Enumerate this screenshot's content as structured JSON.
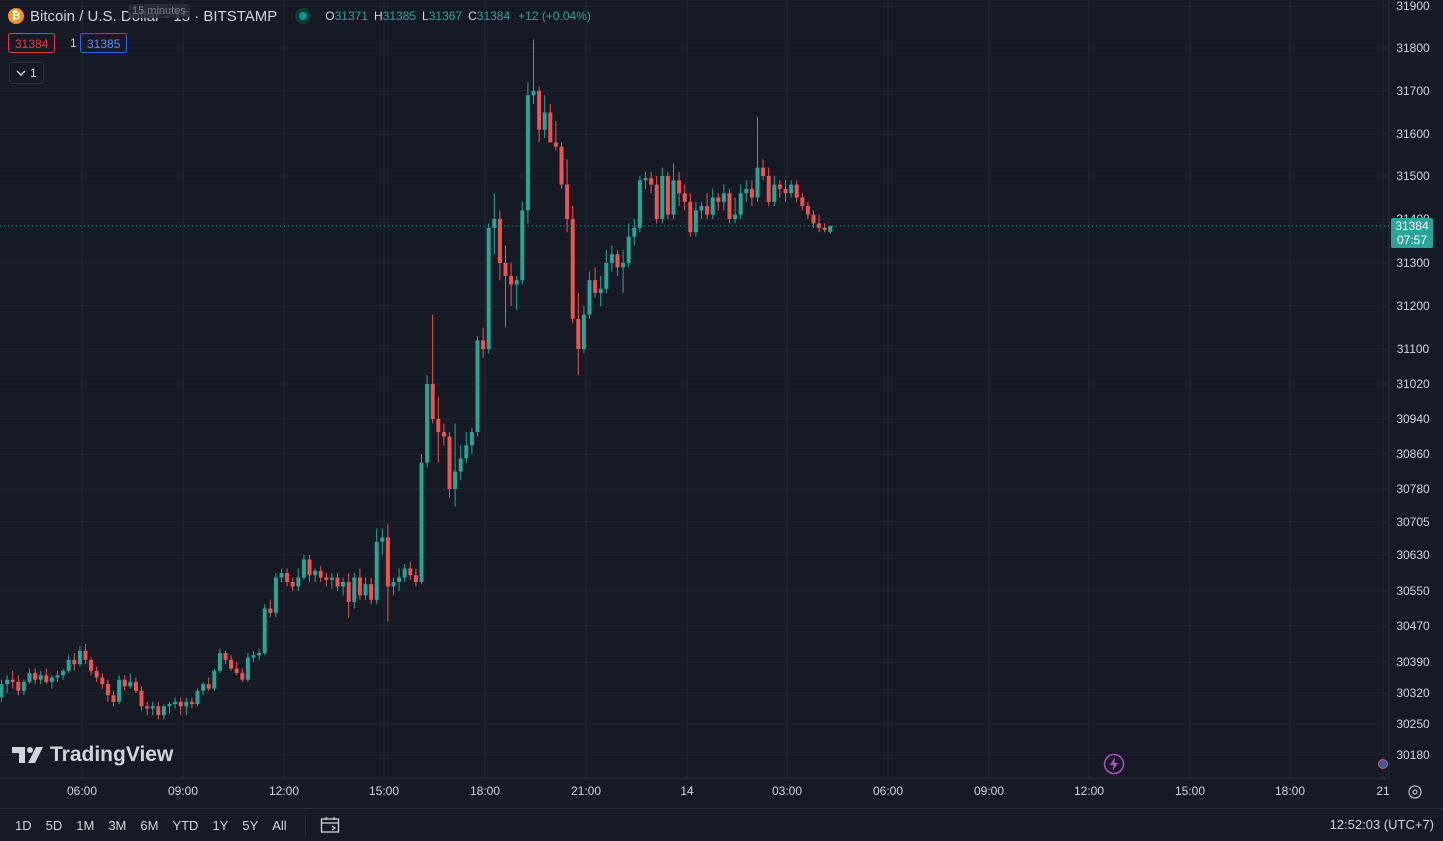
{
  "header": {
    "symbol_title": "Bitcoin / U.S. Dollar · 15 · BITSTAMP",
    "tooltip": "15 minutes",
    "ohlc": {
      "o_label": "O",
      "o_value": "31371",
      "h_label": "H",
      "h_value": "31385",
      "l_label": "L",
      "l_value": "31367",
      "c_label": "C",
      "c_value": "31384",
      "change": "+12 (+0.04%)"
    },
    "sell_price": "31384",
    "quantity": "1",
    "buy_price": "31385",
    "indicator_count": "1"
  },
  "price_label": {
    "price": "31384",
    "countdown": "07:57"
  },
  "logo_text": "TradingView",
  "bottom_bar": {
    "ranges": [
      "1D",
      "5D",
      "1M",
      "3M",
      "6M",
      "YTD",
      "1Y",
      "5Y",
      "All"
    ],
    "clock": "12:52:03 (UTC+7)"
  },
  "colors": {
    "up": "#26a69a",
    "down": "#ef5350",
    "bg": "#161a25",
    "grid": "#232733"
  },
  "icons": [
    "bitcoin-icon",
    "calendar-range-icon",
    "flash-icon",
    "settings-icon",
    "chevron-down-icon",
    "tradingview-logo-icon",
    "flag-icon"
  ],
  "chart_data": {
    "type": "candlestick",
    "interval": "15",
    "y_ticks": [
      31900,
      31800,
      31700,
      31600,
      31500,
      31400,
      31300,
      31200,
      31100,
      31020,
      30940,
      30860,
      30780,
      30705,
      30630,
      30550,
      30470,
      30390,
      30320,
      30250,
      30180
    ],
    "x_ticks": [
      "06:00",
      "09:00",
      "12:00",
      "15:00",
      "18:00",
      "21:00",
      "14",
      "03:00",
      "06:00",
      "09:00",
      "12:00",
      "15:00",
      "18:00",
      "21"
    ],
    "last_price": 31384,
    "candles": [
      [
        30310,
        30350,
        30300,
        30340
      ],
      [
        30340,
        30360,
        30320,
        30350
      ],
      [
        30350,
        30370,
        30330,
        30345
      ],
      [
        30345,
        30360,
        30315,
        30325
      ],
      [
        30325,
        30350,
        30315,
        30345
      ],
      [
        30345,
        30375,
        30340,
        30365
      ],
      [
        30365,
        30375,
        30340,
        30350
      ],
      [
        30350,
        30370,
        30340,
        30360
      ],
      [
        30360,
        30375,
        30340,
        30345
      ],
      [
        30345,
        30360,
        30330,
        30355
      ],
      [
        30355,
        30370,
        30345,
        30360
      ],
      [
        30360,
        30375,
        30350,
        30370
      ],
      [
        30370,
        30405,
        30365,
        30395
      ],
      [
        30395,
        30410,
        30370,
        30385
      ],
      [
        30385,
        30425,
        30380,
        30415
      ],
      [
        30415,
        30430,
        30385,
        30395
      ],
      [
        30395,
        30400,
        30360,
        30370
      ],
      [
        30370,
        30380,
        30345,
        30355
      ],
      [
        30355,
        30365,
        30330,
        30340
      ],
      [
        30340,
        30350,
        30300,
        30315
      ],
      [
        30315,
        30325,
        30290,
        30300
      ],
      [
        30300,
        30360,
        30295,
        30350
      ],
      [
        30350,
        30360,
        30325,
        30335
      ],
      [
        30335,
        30365,
        30330,
        30345
      ],
      [
        30345,
        30355,
        30320,
        30325
      ],
      [
        30325,
        30335,
        30280,
        30290
      ],
      [
        30290,
        30300,
        30270,
        30285
      ],
      [
        30285,
        30300,
        30270,
        30290
      ],
      [
        30290,
        30300,
        30260,
        30270
      ],
      [
        30270,
        30295,
        30260,
        30290
      ],
      [
        30290,
        30300,
        30275,
        30295
      ],
      [
        30295,
        30310,
        30285,
        30300
      ],
      [
        30300,
        30310,
        30270,
        30290
      ],
      [
        30290,
        30310,
        30270,
        30300
      ],
      [
        30300,
        30310,
        30285,
        30295
      ],
      [
        30295,
        30330,
        30290,
        30325
      ],
      [
        30325,
        30345,
        30315,
        30340
      ],
      [
        30340,
        30355,
        30325,
        30330
      ],
      [
        30330,
        30375,
        30325,
        30370
      ],
      [
        30370,
        30420,
        30365,
        30410
      ],
      [
        30410,
        30415,
        30385,
        30395
      ],
      [
        30395,
        30405,
        30370,
        30375
      ],
      [
        30375,
        30390,
        30360,
        30365
      ],
      [
        30365,
        30375,
        30345,
        30350
      ],
      [
        30350,
        30410,
        30345,
        30400
      ],
      [
        30400,
        30415,
        30390,
        30405
      ],
      [
        30405,
        30420,
        30395,
        30410
      ],
      [
        30410,
        30520,
        30405,
        30510
      ],
      [
        30510,
        30530,
        30490,
        30500
      ],
      [
        30500,
        30590,
        30490,
        30580
      ],
      [
        30580,
        30600,
        30570,
        30590
      ],
      [
        30590,
        30600,
        30560,
        30570
      ],
      [
        30570,
        30580,
        30550,
        30560
      ],
      [
        30560,
        30600,
        30550,
        30580
      ],
      [
        30580,
        30630,
        30575,
        30620
      ],
      [
        30620,
        30630,
        30570,
        30585
      ],
      [
        30585,
        30600,
        30570,
        30595
      ],
      [
        30595,
        30605,
        30570,
        30580
      ],
      [
        30580,
        30590,
        30560,
        30575
      ],
      [
        30575,
        30590,
        30555,
        30580
      ],
      [
        30580,
        30590,
        30550,
        30560
      ],
      [
        30560,
        30580,
        30540,
        30570
      ],
      [
        30570,
        30590,
        30490,
        30525
      ],
      [
        30525,
        30590,
        30510,
        30580
      ],
      [
        30580,
        30600,
        30530,
        30540
      ],
      [
        30540,
        30580,
        30530,
        30565
      ],
      [
        30565,
        30580,
        30520,
        30530
      ],
      [
        30530,
        30690,
        30520,
        30660
      ],
      [
        30660,
        30690,
        30630,
        30670
      ],
      [
        30670,
        30700,
        30480,
        30560
      ],
      [
        30560,
        30580,
        30540,
        30570
      ],
      [
        30570,
        30600,
        30550,
        30580
      ],
      [
        30580,
        30610,
        30570,
        30600
      ],
      [
        30600,
        30615,
        30575,
        30585
      ],
      [
        30585,
        30600,
        30560,
        30570
      ],
      [
        30570,
        30860,
        30565,
        30840
      ],
      [
        30840,
        31040,
        30830,
        31020
      ],
      [
        31020,
        31180,
        30930,
        30940
      ],
      [
        30940,
        30990,
        30840,
        30910
      ],
      [
        30910,
        30930,
        30880,
        30900
      ],
      [
        30900,
        30910,
        30760,
        30780
      ],
      [
        30780,
        30930,
        30740,
        30820
      ],
      [
        30820,
        30880,
        30800,
        30850
      ],
      [
        30850,
        30910,
        30840,
        30880
      ],
      [
        30880,
        30920,
        30860,
        30910
      ],
      [
        30910,
        31130,
        30900,
        31120
      ],
      [
        31120,
        31150,
        31080,
        31100
      ],
      [
        31100,
        31390,
        31090,
        31380
      ],
      [
        31380,
        31460,
        31320,
        31400
      ],
      [
        31400,
        31420,
        31260,
        31300
      ],
      [
        31300,
        31340,
        31150,
        31270
      ],
      [
        31270,
        31300,
        31200,
        31250
      ],
      [
        31250,
        31270,
        31190,
        31260
      ],
      [
        31260,
        31440,
        31250,
        31420
      ],
      [
        31420,
        31720,
        31390,
        31690
      ],
      [
        31690,
        31820,
        31670,
        31700
      ],
      [
        31700,
        31710,
        31580,
        31610
      ],
      [
        31610,
        31690,
        31590,
        31650
      ],
      [
        31650,
        31670,
        31580,
        31580
      ],
      [
        31580,
        31630,
        31560,
        31570
      ],
      [
        31570,
        31580,
        31470,
        31480
      ],
      [
        31480,
        31540,
        31370,
        31400
      ],
      [
        31400,
        31430,
        31160,
        31170
      ],
      [
        31170,
        31230,
        31040,
        31100
      ],
      [
        31100,
        31200,
        31090,
        31180
      ],
      [
        31180,
        31280,
        31170,
        31260
      ],
      [
        31260,
        31290,
        31220,
        31230
      ],
      [
        31230,
        31270,
        31200,
        31240
      ],
      [
        31240,
        31330,
        31230,
        31300
      ],
      [
        31300,
        31340,
        31280,
        31320
      ],
      [
        31320,
        31330,
        31270,
        31290
      ],
      [
        31290,
        31330,
        31230,
        31300
      ],
      [
        31300,
        31390,
        31290,
        31360
      ],
      [
        31360,
        31400,
        31340,
        31380
      ],
      [
        31380,
        31500,
        31370,
        31490
      ],
      [
        31490,
        31510,
        31470,
        31495
      ],
      [
        31495,
        31510,
        31460,
        31480
      ],
      [
        31480,
        31500,
        31390,
        31400
      ],
      [
        31400,
        31520,
        31390,
        31500
      ],
      [
        31500,
        31510,
        31400,
        31410
      ],
      [
        31410,
        31530,
        31400,
        31490
      ],
      [
        31490,
        31510,
        31430,
        31460
      ],
      [
        31460,
        31480,
        31420,
        31440
      ],
      [
        31440,
        31460,
        31360,
        31370
      ],
      [
        31370,
        31440,
        31360,
        31420
      ],
      [
        31420,
        31440,
        31400,
        31430
      ],
      [
        31430,
        31460,
        31400,
        31410
      ],
      [
        31410,
        31470,
        31400,
        31450
      ],
      [
        31450,
        31460,
        31420,
        31440
      ],
      [
        31440,
        31480,
        31420,
        31460
      ],
      [
        31460,
        31470,
        31390,
        31400
      ],
      [
        31400,
        31450,
        31390,
        31410
      ],
      [
        31410,
        31480,
        31400,
        31460
      ],
      [
        31460,
        31490,
        31440,
        31470
      ],
      [
        31470,
        31490,
        31430,
        31450
      ],
      [
        31450,
        31640,
        31440,
        31520
      ],
      [
        31520,
        31540,
        31490,
        31500
      ],
      [
        31500,
        31520,
        31430,
        31440
      ],
      [
        31440,
        31500,
        31430,
        31480
      ],
      [
        31480,
        31490,
        31450,
        31470
      ],
      [
        31470,
        31490,
        31440,
        31460
      ],
      [
        31460,
        31490,
        31450,
        31480
      ],
      [
        31480,
        31490,
        31440,
        31450
      ],
      [
        31450,
        31460,
        31420,
        31430
      ],
      [
        31430,
        31440,
        31400,
        31410
      ],
      [
        31410,
        31420,
        31380,
        31390
      ],
      [
        31390,
        31410,
        31370,
        31380
      ],
      [
        31380,
        31390,
        31370,
        31375
      ],
      [
        31371,
        31385,
        31367,
        31384
      ]
    ]
  }
}
